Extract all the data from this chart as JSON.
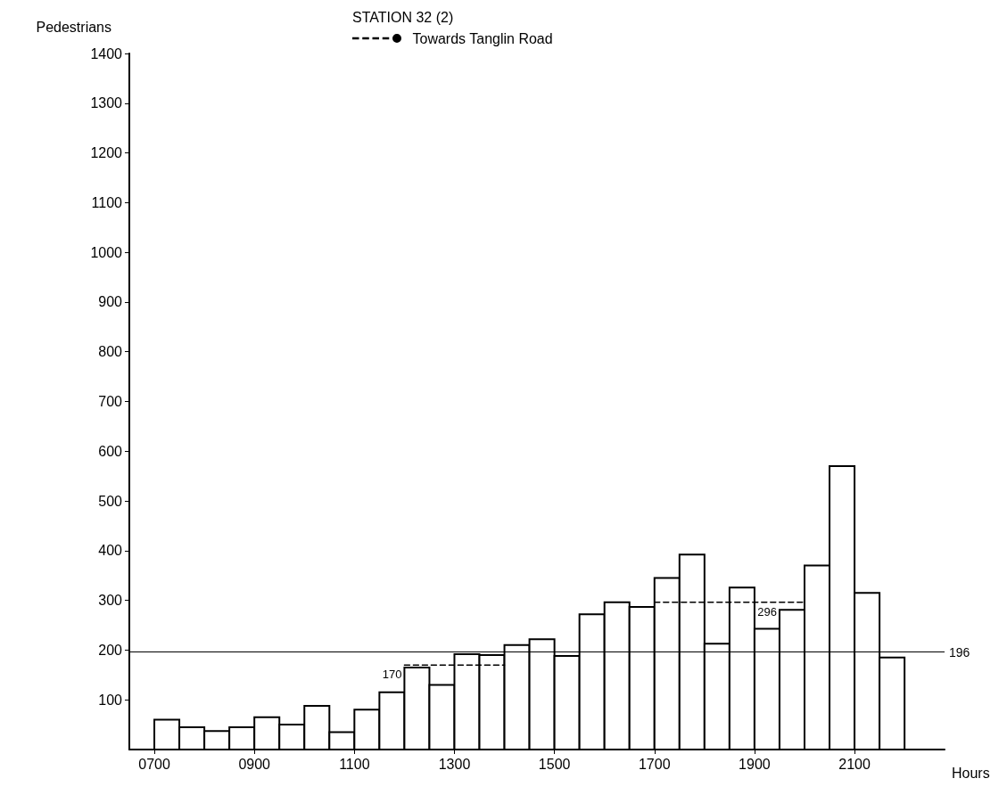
{
  "chart_data": {
    "type": "histogram",
    "title": "STATION 32 (2)",
    "ylabel": "Pedestrians",
    "xlabel": "Hours",
    "bins": [
      700,
      750,
      800,
      850,
      900,
      950,
      1000,
      1050,
      1100,
      1150,
      1200,
      1250,
      1300,
      1350,
      1400,
      1450,
      1500,
      1550,
      1600,
      1650,
      1700,
      1750,
      1800,
      1850,
      1900,
      1950,
      2000,
      2050,
      2100,
      2150,
      2200
    ],
    "values": [
      60,
      45,
      37,
      45,
      65,
      50,
      88,
      35,
      80,
      115,
      165,
      130,
      192,
      190,
      210,
      222,
      188,
      272,
      296,
      287,
      345,
      392,
      213,
      326,
      243,
      281,
      370,
      570,
      315,
      185
    ],
    "color": "#ffffff",
    "series": [
      {
        "name": "Towards Tanglin Road",
        "type": "line",
        "color": "#000000",
        "line_style": "dashed",
        "x": [
          1200,
          1400,
          1500,
          1700,
          2000
        ],
        "values": [
          170,
          170,
          null,
          296,
          296
        ]
      }
    ],
    "xlim": [
      650,
      2280
    ],
    "xticks": [
      {
        "value": 700,
        "label": "0700"
      },
      {
        "value": 900,
        "label": "0900"
      },
      {
        "value": 1100,
        "label": "1100"
      },
      {
        "value": 1300,
        "label": "1300"
      },
      {
        "value": 1500,
        "label": "1500"
      },
      {
        "value": 1700,
        "label": "1700"
      },
      {
        "value": 1900,
        "label": "1900"
      },
      {
        "value": 2100,
        "label": "2100"
      }
    ],
    "ylim": [
      0,
      1400
    ],
    "yticks": [
      100,
      200,
      300,
      400,
      500,
      600,
      700,
      800,
      900,
      1000,
      1100,
      1200,
      1300,
      1400
    ],
    "ref_lines": [
      {
        "axis": "y",
        "value": 196,
        "label": "196",
        "color": "#000000",
        "line_style": "solid"
      }
    ],
    "annotations": [
      {
        "text": "170",
        "x": 1200,
        "y": 170
      },
      {
        "text": "296",
        "x": 1950,
        "y": 296
      }
    ],
    "legend": "top",
    "grid": false
  }
}
